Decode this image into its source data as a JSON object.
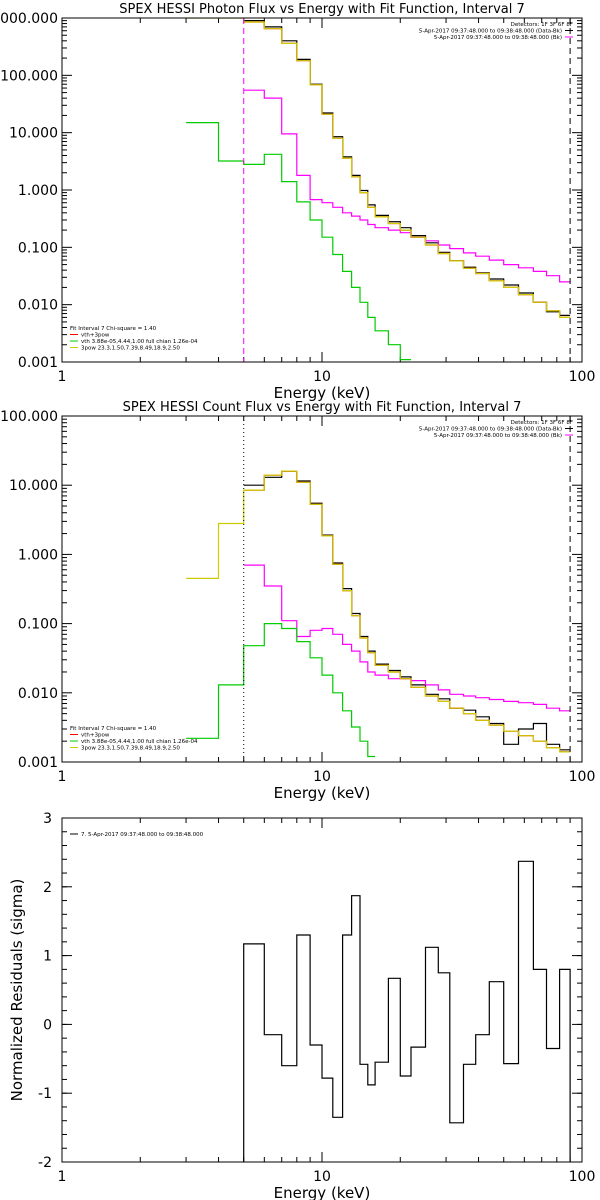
{
  "chart_data": [
    {
      "type": "line",
      "title": "SPEX HESSI Photon Flux vs Energy with Fit Function, Interval 7",
      "xlabel": "Energy (keV)",
      "ylabel": "",
      "x_scale": "log",
      "y_scale": "log",
      "xlim": [
        1,
        100
      ],
      "ylim": [
        0.001,
        1000
      ],
      "x_tick_labels": [
        "1",
        "10",
        "100"
      ],
      "y_tick_labels": [
        "1000.000",
        "100.000",
        "10.000",
        "1.000",
        "0.100",
        "0.010",
        "0.001"
      ],
      "header_text": [
        {
          "text": "Detectors: 1F 3F 6F 8F",
          "key": false
        },
        {
          "text": "5-Apr-2017 09:37:48.000 to 09:38:48.000 (Data-Bk)",
          "key": true,
          "color": "#000000"
        },
        {
          "text": "5-Apr-2017 09:37:48.000 to 09:38:48.000 (Bk)",
          "key": true,
          "color": "#ff00ff"
        }
      ],
      "legend_text": [
        {
          "text": "Fit Interval 7   Chi-square = 1.40",
          "key": false
        },
        {
          "text": "vth+3pow",
          "key": true,
          "color": "#ff0000"
        },
        {
          "text": "vth 3.88e-05,4.44,1.00  full chian 1.26e-04",
          "key": true,
          "color": "#00cc00"
        },
        {
          "text": "3pow 23.3,1.50,7.39,8.49,18.9,2.50",
          "key": true,
          "color": "#cccc00"
        }
      ],
      "vlines": [
        {
          "x": 5,
          "color": "#ff00ff",
          "style": "dashed"
        },
        {
          "x": 90,
          "color": "#000000",
          "style": "dashed"
        }
      ],
      "edges": [
        3,
        4,
        5,
        6,
        7,
        8,
        9,
        10,
        11,
        12,
        13,
        14,
        15,
        16,
        18,
        20,
        22,
        25,
        28,
        31,
        35,
        39,
        44,
        50,
        57,
        65,
        73,
        82,
        90
      ],
      "series": [
        {
          "name": "Data-Bk",
          "color": "#000000",
          "values": [
            null,
            null,
            900,
            700,
            400,
            190,
            70,
            22,
            8.5,
            3.8,
            1.8,
            0.98,
            0.55,
            0.36,
            0.28,
            0.22,
            0.16,
            0.12,
            0.082,
            0.058,
            0.045,
            0.036,
            0.028,
            0.022,
            0.016,
            0.011,
            0.0075,
            0.0065
          ]
        },
        {
          "name": "Bk",
          "color": "#ff00ff",
          "values": [
            null,
            null,
            55,
            40,
            9.5,
            1.8,
            0.68,
            0.6,
            0.5,
            0.4,
            0.35,
            0.3,
            0.25,
            0.22,
            0.2,
            0.18,
            0.15,
            0.13,
            0.11,
            0.095,
            0.08,
            0.07,
            0.06,
            0.05,
            0.044,
            0.038,
            0.032,
            0.025
          ]
        },
        {
          "name": "vth+3pow",
          "color": "#ff0000",
          "values": [
            null,
            null,
            850,
            650,
            360,
            180,
            68,
            21,
            8,
            3.6,
            1.7,
            0.9,
            0.5,
            0.34,
            0.26,
            0.2,
            0.15,
            0.11,
            0.078,
            0.058,
            0.043,
            0.035,
            0.026,
            0.02,
            0.015,
            0.011,
            0.0078,
            0.006
          ]
        },
        {
          "name": "vth",
          "color": "#00cc00",
          "values": [
            15,
            3.2,
            2.8,
            4.2,
            1.4,
            0.62,
            0.3,
            0.15,
            0.075,
            0.038,
            0.02,
            0.011,
            0.006,
            0.0035,
            0.002,
            0.0011,
            null,
            null,
            null,
            null,
            null,
            null,
            null,
            null,
            null,
            null,
            null,
            null
          ]
        },
        {
          "name": "3pow",
          "color": "#cccc00",
          "values": [
            1000,
            1000,
            850,
            650,
            360,
            180,
            68,
            21,
            8,
            3.6,
            1.7,
            0.9,
            0.5,
            0.34,
            0.26,
            0.2,
            0.15,
            0.11,
            0.078,
            0.058,
            0.043,
            0.035,
            0.026,
            0.02,
            0.015,
            0.011,
            0.0078,
            0.006
          ]
        }
      ]
    },
    {
      "type": "line",
      "title": "SPEX HESSI Count Flux vs Energy with Fit Function, Interval 7",
      "xlabel": "Energy (keV)",
      "ylabel": "",
      "x_scale": "log",
      "y_scale": "log",
      "xlim": [
        1,
        100
      ],
      "ylim": [
        0.001,
        100
      ],
      "x_tick_labels": [
        "1",
        "10",
        "100"
      ],
      "y_tick_labels": [
        "100.000",
        "10.000",
        "1.000",
        "0.100",
        "0.010",
        "0.001"
      ],
      "header_text": [
        {
          "text": "Detectors: 1F 3F 6F 8F",
          "key": false
        },
        {
          "text": "5-Apr-2017 09:37:48.000 to 09:38:48.000 (Data-Bk)",
          "key": true,
          "color": "#000000"
        },
        {
          "text": "5-Apr-2017 09:37:48.000 to 09:38:48.000 (Bk)",
          "key": true,
          "color": "#ff00ff"
        }
      ],
      "legend_text": [
        {
          "text": "Fit Interval 7   Chi-square = 1.40",
          "key": false
        },
        {
          "text": "vth+3pow",
          "key": true,
          "color": "#ff0000"
        },
        {
          "text": "vth 3.88e-05,4.44,1.00  full chian 1.26e-04",
          "key": true,
          "color": "#00cc00"
        },
        {
          "text": "3pow 23.3,1.50,7.39,8.49,18.9,2.50",
          "key": true,
          "color": "#cccc00"
        }
      ],
      "vlines": [
        {
          "x": 5,
          "color": "#000000",
          "style": "dotted"
        },
        {
          "x": 90,
          "color": "#000000",
          "style": "dashed"
        }
      ],
      "edges": [
        3,
        4,
        5,
        6,
        7,
        8,
        9,
        10,
        11,
        12,
        13,
        14,
        15,
        16,
        18,
        20,
        22,
        25,
        28,
        31,
        35,
        39,
        44,
        50,
        57,
        65,
        73,
        82,
        90
      ],
      "series": [
        {
          "name": "Data-Bk",
          "color": "#000000",
          "values": [
            null,
            null,
            10,
            13,
            16,
            11.5,
            5.5,
            1.9,
            0.75,
            0.32,
            0.14,
            0.065,
            0.04,
            0.026,
            0.021,
            0.017,
            0.013,
            0.0095,
            0.0082,
            0.006,
            0.0056,
            0.0045,
            0.0036,
            0.0018,
            0.003,
            0.0036,
            0.0018,
            0.0015
          ]
        },
        {
          "name": "Bk",
          "color": "#ff00ff",
          "values": [
            null,
            null,
            0.7,
            0.35,
            0.11,
            0.065,
            0.08,
            0.085,
            0.07,
            0.05,
            0.04,
            0.028,
            0.02,
            0.018,
            0.016,
            0.016,
            0.015,
            0.013,
            0.011,
            0.0095,
            0.009,
            0.0085,
            0.008,
            0.0075,
            0.0072,
            0.0068,
            0.006,
            0.0055
          ]
        },
        {
          "name": "vth+3pow",
          "color": "#ff0000",
          "values": [
            null,
            null,
            8.5,
            14,
            16,
            11,
            5.3,
            1.85,
            0.72,
            0.3,
            0.13,
            0.062,
            0.038,
            0.025,
            0.02,
            0.016,
            0.012,
            0.009,
            0.0075,
            0.006,
            0.005,
            0.004,
            0.0034,
            0.0028,
            0.0024,
            0.002,
            0.0016,
            0.0014
          ]
        },
        {
          "name": "vth",
          "color": "#00cc00",
          "values": [
            0.0022,
            0.013,
            0.048,
            0.1,
            0.085,
            0.055,
            0.032,
            0.018,
            0.01,
            0.0055,
            0.0032,
            0.002,
            0.0012,
            null,
            null,
            null,
            null,
            null,
            null,
            null,
            null,
            null,
            null,
            null,
            null,
            null,
            null,
            null
          ]
        },
        {
          "name": "3pow",
          "color": "#cccc00",
          "values": [
            0.45,
            2.8,
            8.5,
            14,
            16,
            11,
            5.3,
            1.85,
            0.72,
            0.3,
            0.13,
            0.062,
            0.038,
            0.025,
            0.02,
            0.016,
            0.012,
            0.009,
            0.0075,
            0.006,
            0.005,
            0.004,
            0.0034,
            0.0028,
            0.0024,
            0.002,
            0.0016,
            0.0014
          ]
        }
      ]
    },
    {
      "type": "line",
      "title": "",
      "xlabel": "Energy (keV)",
      "ylabel": "Normalized Residuals (sigma)",
      "x_scale": "log",
      "y_scale": "linear",
      "xlim": [
        1,
        100
      ],
      "ylim": [
        -2,
        3
      ],
      "x_tick_labels": [
        "1",
        "10",
        "100"
      ],
      "y_tick_labels": [
        "3",
        "2",
        "1",
        "0",
        "-1",
        "-2"
      ],
      "y_ticks": [
        3,
        2,
        1,
        0,
        -1,
        -2
      ],
      "legend_text": [
        {
          "text": "7.  5-Apr-2017 09:37:48.000 to 09:38:48.000",
          "key": true,
          "color": "#000000"
        }
      ],
      "edges": [
        5,
        6,
        7,
        8,
        9,
        10,
        11,
        12,
        13,
        14,
        15,
        16,
        18,
        20,
        22,
        25,
        28,
        31,
        35,
        39,
        44,
        50,
        57,
        65,
        73,
        82,
        90
      ],
      "series": [
        {
          "name": "7.  5-Apr-2017 09:37:48.000 to 09:38:48.000",
          "color": "#000000",
          "values": [
            1.17,
            -0.15,
            -0.6,
            1.3,
            -0.3,
            -0.78,
            -1.35,
            1.3,
            1.87,
            -0.58,
            -0.88,
            -0.55,
            0.67,
            -0.75,
            -0.33,
            1.12,
            0.75,
            -1.43,
            -0.58,
            -0.15,
            0.62,
            -0.57,
            2.37,
            0.8,
            -0.35,
            0.8
          ]
        }
      ]
    }
  ]
}
